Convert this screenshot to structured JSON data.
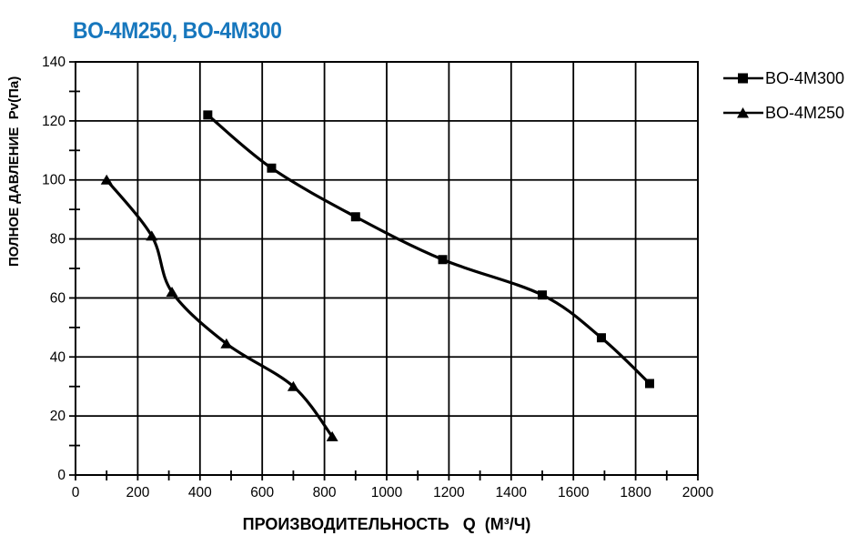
{
  "title": "BO-4M250, BO-4M300",
  "colors": {
    "title": "#1777BD",
    "axis": "#000000",
    "grid": "#000000",
    "curve": "#000000",
    "background": "#ffffff"
  },
  "legend": {
    "items": [
      {
        "label": "BO-4M300",
        "marker": "square"
      },
      {
        "label": "BO-4M250",
        "marker": "triangle"
      }
    ]
  },
  "chart_data": {
    "type": "line",
    "title": "BO-4M250, BO-4M300",
    "xlabel": "ПРОИЗВОДИТЕЛЬНОСТЬ   Q  (М³/Ч)",
    "ylabel": "ПОЛНОЕ ДАВЛЕНИЕ  Pv(Па)",
    "xlim": [
      0,
      2000
    ],
    "ylim": [
      0,
      140
    ],
    "x_ticks": [
      0,
      200,
      400,
      600,
      800,
      1000,
      1200,
      1400,
      1600,
      1800,
      2000
    ],
    "y_ticks": [
      0,
      20,
      40,
      60,
      80,
      100,
      120,
      140
    ],
    "x_minor_step": 100,
    "y_minor_step": 10,
    "grid": true,
    "legend_position": "top-right-outside",
    "series": [
      {
        "name": "BO-4M300",
        "marker": "square",
        "color": "#000000",
        "points": [
          [
            425,
            122
          ],
          [
            630,
            104
          ],
          [
            900,
            87.5
          ],
          [
            1180,
            73
          ],
          [
            1500,
            61
          ],
          [
            1690,
            46.5
          ],
          [
            1845,
            31
          ]
        ]
      },
      {
        "name": "BO-4M250",
        "marker": "triangle",
        "color": "#000000",
        "points": [
          [
            100,
            100
          ],
          [
            245,
            81
          ],
          [
            310,
            62
          ],
          [
            485,
            44.5
          ],
          [
            700,
            30
          ],
          [
            825,
            13
          ]
        ]
      }
    ]
  }
}
